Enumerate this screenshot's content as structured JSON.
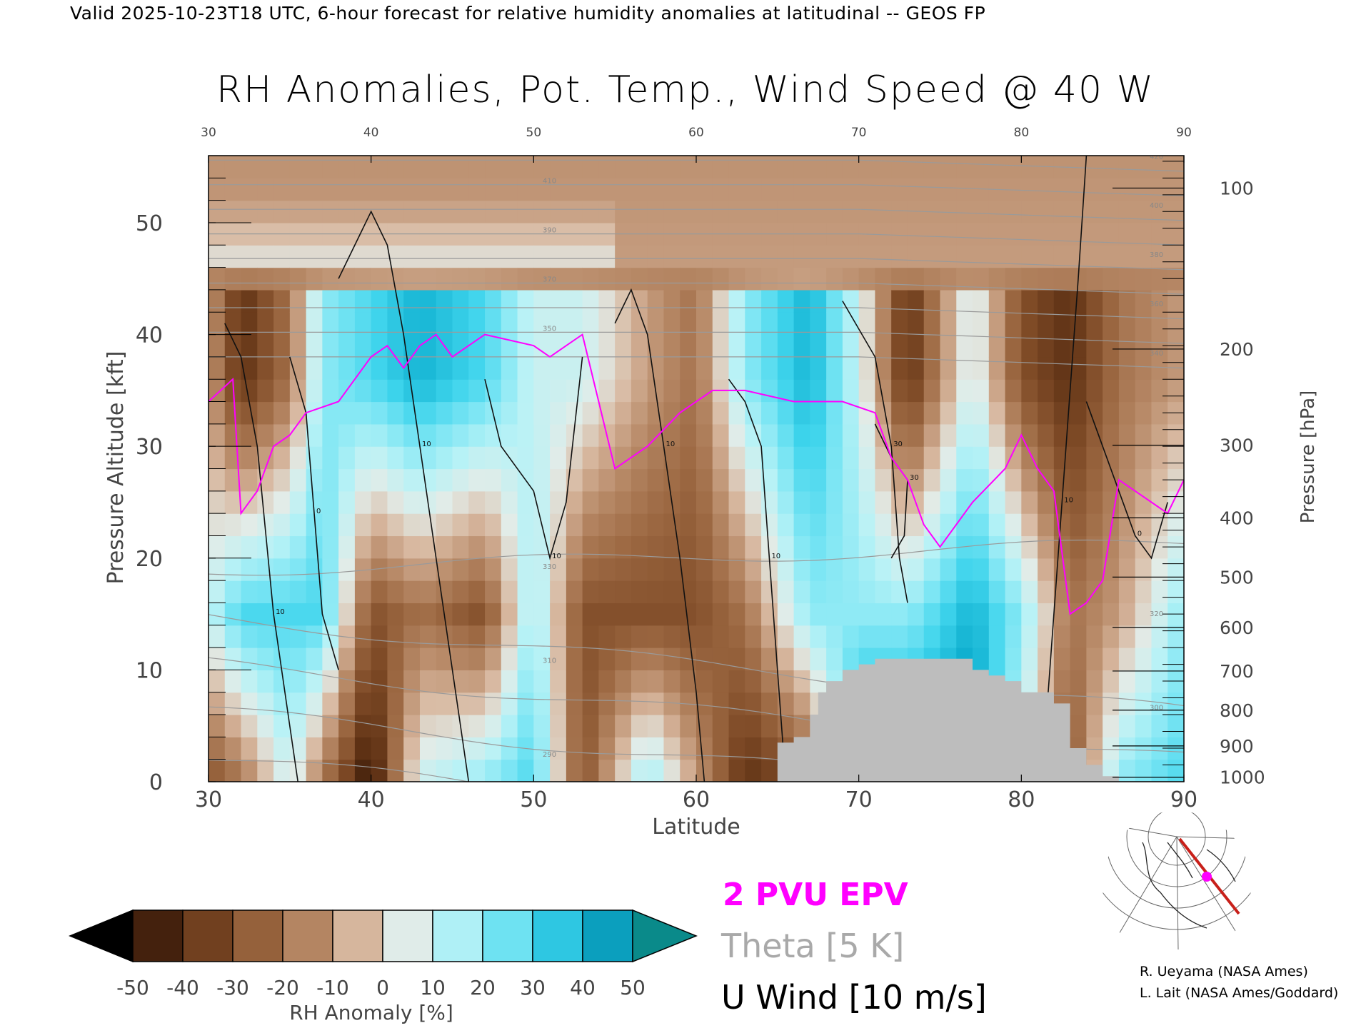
{
  "header": {
    "valid_line": "Valid 2025-10-23T18 UTC, 6-hour forecast for relative humidity anomalies at latitudinal -- GEOS FP"
  },
  "chart_data": {
    "type": "heatmap",
    "title": "RH Anomalies, Pot. Temp., Wind Speed @ 40 W",
    "xlabel": "Latitude",
    "ylabel": "Pressure Altitude [kft]",
    "y2label": "Pressure [hPa]",
    "xlim": [
      30,
      90
    ],
    "ylim": [
      0,
      56
    ],
    "x_ticks": [
      "30",
      "40",
      "50",
      "60",
      "70",
      "80",
      "90"
    ],
    "y_ticks": [
      "0",
      "10",
      "20",
      "30",
      "40",
      "50"
    ],
    "pressure_ticks": [
      {
        "label": "100",
        "kft": 53.1
      },
      {
        "label": "200",
        "kft": 38.7
      },
      {
        "label": "300",
        "kft": 30.1
      },
      {
        "label": "400",
        "kft": 23.6
      },
      {
        "label": "500",
        "kft": 18.3
      },
      {
        "label": "600",
        "kft": 13.8
      },
      {
        "label": "700",
        "kft": 9.9
      },
      {
        "label": "800",
        "kft": 6.4
      },
      {
        "label": "900",
        "kft": 3.2
      },
      {
        "label": "1000",
        "kft": 0.4
      }
    ],
    "colorbar": {
      "label": "RH Anomaly [%]",
      "ticks": [
        "-50",
        "-40",
        "-30",
        "-20",
        "-10",
        "0",
        "10",
        "20",
        "30",
        "40",
        "50"
      ],
      "colors": [
        "#2a1206",
        "#5a2e12",
        "#7e4a26",
        "#9c6842",
        "#b88a68",
        "#d8b8a0",
        "#e2ece8",
        "#b8f2f6",
        "#7ee6f4",
        "#3ed4ec",
        "#10b0d0",
        "#058aa8"
      ],
      "under_color": "#000000",
      "over_color": "#0a8a8a"
    },
    "legend": [
      {
        "label": "2 PVU EPV",
        "color": "#ff00ff"
      },
      {
        "label": "Theta [5 K]",
        "color": "#a9a9a9"
      },
      {
        "label": "U Wind [10 m/s]",
        "color": "#000000"
      }
    ],
    "theta_levels": [
      290,
      300,
      310,
      320,
      330,
      340,
      350,
      360,
      370,
      380,
      390,
      400,
      410,
      420
    ],
    "rh_anomaly_columns": [
      {
        "lat": 30,
        "low": -30,
        "mid": 10,
        "upper": -10
      },
      {
        "lat": 32,
        "low": -20,
        "mid": 30,
        "upper": -40
      },
      {
        "lat": 35,
        "low": 10,
        "mid": 30,
        "upper": -20
      },
      {
        "lat": 37,
        "low": -20,
        "mid": 30,
        "upper": 20
      },
      {
        "lat": 40,
        "low": -50,
        "mid": -30,
        "upper": 30
      },
      {
        "lat": 43,
        "low": 10,
        "mid": -20,
        "upper": 40
      },
      {
        "lat": 47,
        "low": 20,
        "mid": -30,
        "upper": 30
      },
      {
        "lat": 50,
        "low": 30,
        "mid": 20,
        "upper": 10
      },
      {
        "lat": 53,
        "low": -30,
        "mid": -30,
        "upper": 10
      },
      {
        "lat": 57,
        "low": 20,
        "mid": -30,
        "upper": -10
      },
      {
        "lat": 60,
        "low": -10,
        "mid": -30,
        "upper": -20
      },
      {
        "lat": 63,
        "low": -40,
        "mid": -20,
        "upper": 20
      },
      {
        "lat": 67,
        "low": -30,
        "mid": 20,
        "upper": 40
      },
      {
        "lat": 70,
        "low": 50,
        "mid": 20,
        "upper": 10
      },
      {
        "lat": 73,
        "low": 50,
        "mid": 20,
        "upper": -40
      },
      {
        "lat": 77,
        "low": 50,
        "mid": 40,
        "upper": 10
      },
      {
        "lat": 80,
        "low": 10,
        "mid": 20,
        "upper": -30
      },
      {
        "lat": 83,
        "low": -30,
        "mid": -20,
        "upper": -40
      },
      {
        "lat": 86,
        "low": 20,
        "mid": -10,
        "upper": -20
      },
      {
        "lat": 90,
        "low": 30,
        "mid": 20,
        "upper": -10
      }
    ],
    "epv_2pvu_line": [
      [
        30,
        34
      ],
      [
        31.5,
        36
      ],
      [
        32,
        24
      ],
      [
        33,
        26
      ],
      [
        34,
        30
      ],
      [
        35,
        31
      ],
      [
        36,
        33
      ],
      [
        38,
        34
      ],
      [
        39,
        36
      ],
      [
        40,
        38
      ],
      [
        41,
        39
      ],
      [
        42,
        37
      ],
      [
        43,
        39
      ],
      [
        44,
        40
      ],
      [
        45,
        38
      ],
      [
        46,
        39
      ],
      [
        47,
        40
      ],
      [
        50,
        39
      ],
      [
        51,
        38
      ],
      [
        52,
        39
      ],
      [
        53,
        40
      ],
      [
        54,
        34
      ],
      [
        55,
        28
      ],
      [
        57,
        30
      ],
      [
        59,
        33
      ],
      [
        61,
        35
      ],
      [
        63,
        35
      ],
      [
        66,
        34
      ],
      [
        69,
        34
      ],
      [
        71,
        33
      ],
      [
        72,
        29
      ],
      [
        73,
        27
      ],
      [
        74,
        23
      ],
      [
        75,
        21
      ],
      [
        77,
        25
      ],
      [
        79,
        28
      ],
      [
        80,
        31
      ],
      [
        81,
        28
      ],
      [
        82,
        26
      ],
      [
        83,
        15
      ],
      [
        84,
        16
      ],
      [
        85,
        18
      ],
      [
        86,
        27
      ],
      [
        88,
        25
      ],
      [
        89,
        24
      ],
      [
        90,
        27
      ]
    ],
    "u_wind_contours": [
      {
        "label": "10",
        "points": [
          [
            31,
            41
          ],
          [
            32,
            38
          ],
          [
            33,
            30
          ],
          [
            34,
            15
          ],
          [
            35,
            5
          ],
          [
            35.5,
            0
          ]
        ]
      },
      {
        "label": "0",
        "points": [
          [
            35,
            38
          ],
          [
            36,
            33
          ],
          [
            36.5,
            24
          ],
          [
            37,
            15
          ],
          [
            38,
            10
          ]
        ]
      },
      {
        "label": "10",
        "points": [
          [
            38,
            45
          ],
          [
            40,
            51
          ],
          [
            41,
            48
          ],
          [
            42,
            40
          ],
          [
            43,
            30
          ],
          [
            44,
            20
          ],
          [
            45,
            10
          ],
          [
            46,
            0
          ]
        ]
      },
      {
        "label": "10",
        "points": [
          [
            47,
            36
          ],
          [
            48,
            30
          ],
          [
            50,
            26
          ],
          [
            51,
            20
          ],
          [
            52,
            25
          ],
          [
            53,
            38
          ]
        ]
      },
      {
        "label": "10",
        "points": [
          [
            55,
            41
          ],
          [
            56,
            44
          ],
          [
            57,
            40
          ],
          [
            58,
            30
          ],
          [
            59,
            20
          ],
          [
            60,
            8
          ],
          [
            60.5,
            0
          ]
        ]
      },
      {
        "label": "10",
        "points": [
          [
            62,
            36
          ],
          [
            63,
            34
          ],
          [
            64,
            30
          ],
          [
            64.5,
            20
          ],
          [
            65,
            10
          ],
          [
            65.5,
            0
          ]
        ]
      },
      {
        "label": "30",
        "points": [
          [
            69,
            43
          ],
          [
            71,
            38
          ],
          [
            72,
            30
          ],
          [
            72.5,
            20
          ],
          [
            73,
            16
          ]
        ]
      },
      {
        "label": "30",
        "points": [
          [
            71,
            32
          ],
          [
            72,
            29
          ],
          [
            73,
            27
          ],
          [
            72.8,
            22
          ],
          [
            72,
            20
          ]
        ]
      },
      {
        "label": "10",
        "points": [
          [
            84,
            56
          ],
          [
            83.5,
            45
          ],
          [
            83,
            35
          ],
          [
            82.5,
            25
          ],
          [
            82,
            15
          ],
          [
            81.5,
            5
          ]
        ]
      },
      {
        "label": "0",
        "points": [
          [
            84,
            34
          ],
          [
            85,
            30
          ],
          [
            86,
            26
          ],
          [
            87,
            22
          ],
          [
            88,
            20
          ],
          [
            89,
            25
          ]
        ]
      }
    ],
    "terrain_kft_by_lat": [
      [
        65,
        3.5
      ],
      [
        66,
        4
      ],
      [
        67,
        6
      ],
      [
        67.5,
        8
      ],
      [
        68,
        9
      ],
      [
        69,
        10
      ],
      [
        70,
        10.5
      ],
      [
        71,
        11
      ],
      [
        72,
        11
      ],
      [
        73,
        11
      ],
      [
        74,
        11
      ],
      [
        75,
        11
      ],
      [
        76,
        11
      ],
      [
        77,
        10
      ],
      [
        78,
        9.5
      ],
      [
        79,
        9
      ],
      [
        80,
        8
      ],
      [
        81,
        8
      ],
      [
        82,
        7
      ],
      [
        83,
        3
      ],
      [
        84,
        1.5
      ],
      [
        85,
        0.5
      ]
    ]
  },
  "inset_map": {
    "icon": "globe-inset-map-icon",
    "transect_color": "#c8201a",
    "marker_color": "#ff00ff"
  },
  "credits": {
    "line1": "R. Ueyama (NASA Ames)",
    "line2": "L. Lait (NASA Ames/Goddard)"
  }
}
